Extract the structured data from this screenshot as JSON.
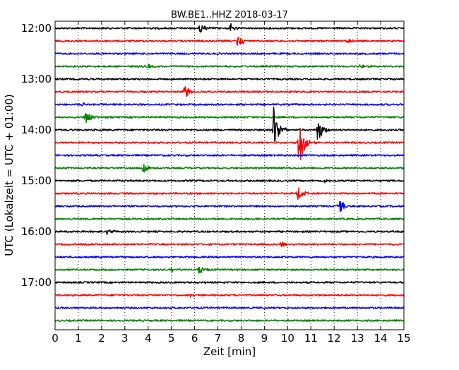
{
  "chart_data": {
    "type": "line",
    "title": "BW.BE1..HHZ 2018-03-17",
    "xlabel": "Zeit  [min]",
    "ylabel": "UTC (Lokalzeit = UTC + 01:00)",
    "xlim": [
      0,
      15
    ],
    "x_ticks": [
      "0",
      "1",
      "2",
      "3",
      "4",
      "5",
      "6",
      "7",
      "8",
      "9",
      "10",
      "11",
      "12",
      "13",
      "14",
      "15"
    ],
    "y_ticks": [
      "12:00",
      "13:00",
      "14:00",
      "15:00",
      "16:00",
      "17:00"
    ],
    "trace_interval_min": 15,
    "start_time": "12:00",
    "grid": true,
    "colors": [
      "#000000",
      "#ff0000",
      "#0000ff",
      "#008000"
    ],
    "series": [
      {
        "start": "12:00",
        "events": [
          {
            "t": 6.25,
            "amp": 0.45
          },
          {
            "t": 7.55,
            "amp": 0.35
          }
        ]
      },
      {
        "start": "12:15",
        "events": [
          {
            "t": 7.85,
            "amp": 0.6
          },
          {
            "t": 12.6,
            "amp": 0.2
          }
        ]
      },
      {
        "start": "12:30",
        "events": []
      },
      {
        "start": "12:45",
        "events": [
          {
            "t": 4.0,
            "amp": 0.15
          },
          {
            "t": 13.1,
            "amp": 0.2
          }
        ]
      },
      {
        "start": "13:00",
        "events": []
      },
      {
        "start": "13:15",
        "events": [
          {
            "t": 5.55,
            "amp": 0.85
          }
        ]
      },
      {
        "start": "13:30",
        "events": [
          {
            "t": 1.15,
            "amp": 0.15
          }
        ]
      },
      {
        "start": "13:45",
        "events": [
          {
            "t": 1.3,
            "amp": 0.55
          }
        ]
      },
      {
        "start": "14:00",
        "events": [
          {
            "t": 9.4,
            "amp": 1.9
          },
          {
            "t": 11.3,
            "amp": 1.0
          }
        ]
      },
      {
        "start": "14:15",
        "events": [
          {
            "t": 10.5,
            "amp": 2.2
          }
        ]
      },
      {
        "start": "14:30",
        "events": []
      },
      {
        "start": "14:45",
        "events": [
          {
            "t": 3.8,
            "amp": 0.55
          }
        ]
      },
      {
        "start": "15:00",
        "events": [
          {
            "t": 11.6,
            "amp": 0.15
          }
        ]
      },
      {
        "start": "15:15",
        "events": [
          {
            "t": 10.45,
            "amp": 0.6
          }
        ]
      },
      {
        "start": "15:30",
        "events": [
          {
            "t": 12.2,
            "amp": 0.65
          }
        ]
      },
      {
        "start": "15:45",
        "events": []
      },
      {
        "start": "16:00",
        "events": [
          {
            "t": 2.25,
            "amp": 0.2
          }
        ]
      },
      {
        "start": "16:15",
        "events": [
          {
            "t": 9.75,
            "amp": 0.25
          }
        ]
      },
      {
        "start": "16:30",
        "events": []
      },
      {
        "start": "16:45",
        "events": [
          {
            "t": 5.0,
            "amp": 0.2
          },
          {
            "t": 6.2,
            "amp": 0.35
          }
        ]
      },
      {
        "start": "17:00",
        "events": []
      },
      {
        "start": "17:15",
        "events": [
          {
            "t": 5.8,
            "amp": 0.15
          }
        ]
      },
      {
        "start": "17:30",
        "events": []
      },
      {
        "start": "17:45",
        "events": []
      }
    ]
  }
}
